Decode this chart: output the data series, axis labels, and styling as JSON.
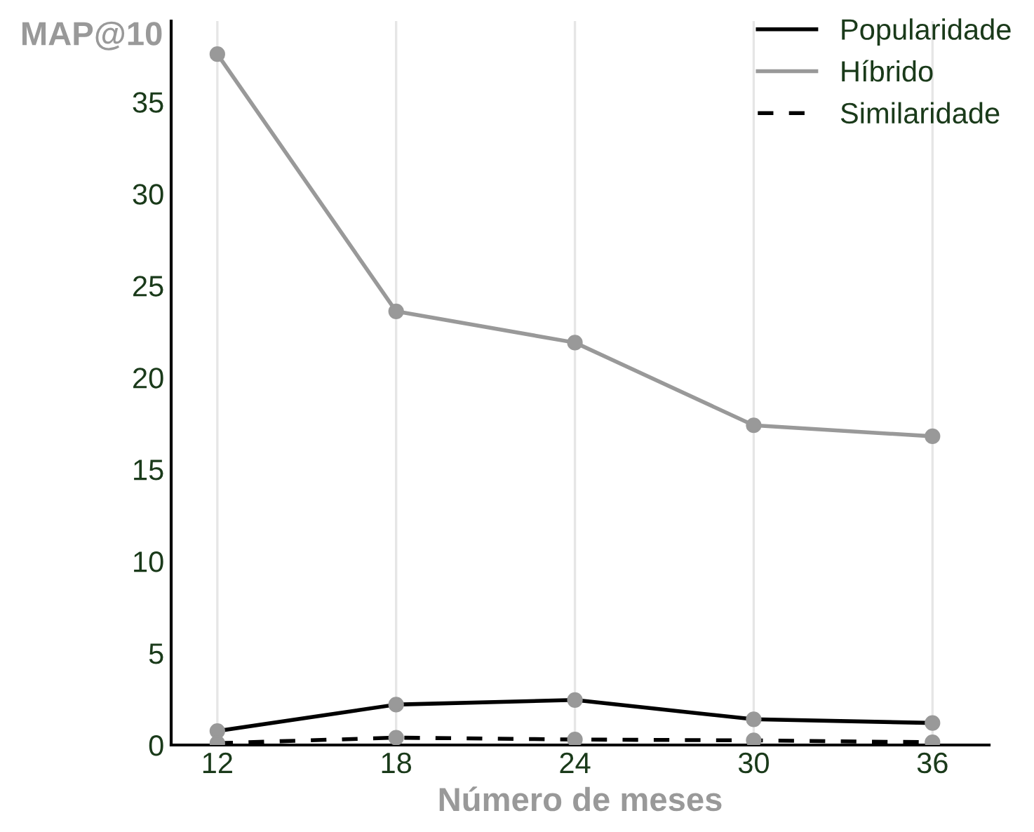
{
  "chart_data": {
    "type": "line",
    "xlabel": "Número de meses",
    "ylabel": "MAP@10",
    "x": [
      12,
      18,
      24,
      30,
      36
    ],
    "series": [
      {
        "name": "Popularidade",
        "color": "#000000",
        "line_style": "solid",
        "values": [
          0.76,
          2.2,
          2.45,
          1.4,
          1.2
        ]
      },
      {
        "name": "Híbrido",
        "color": "#999999",
        "line_style": "solid",
        "values": [
          37.6,
          23.6,
          21.9,
          17.4,
          16.8
        ]
      },
      {
        "name": "Similaridade",
        "color": "#000000",
        "line_style": "dashed",
        "values": [
          0.1,
          0.4,
          0.3,
          0.25,
          0.15
        ]
      }
    ],
    "xlim": [
      10.45,
      37.9
    ],
    "ylim": [
      0,
      39.4
    ],
    "xticks": [
      12,
      18,
      24,
      30,
      36
    ],
    "yticks": [
      0,
      5,
      10,
      15,
      20,
      25,
      30,
      35
    ],
    "grid": "x",
    "legend": "top right",
    "marker": "circle"
  }
}
